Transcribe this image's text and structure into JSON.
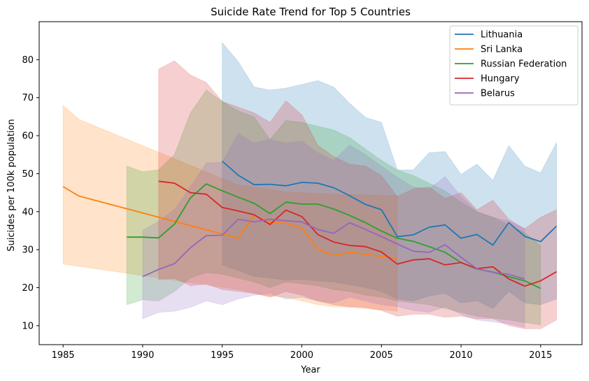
{
  "chart_data": {
    "type": "line",
    "title": "Suicide Rate Trend for Top 5 Countries",
    "xlabel": "Year",
    "ylabel": "Suicides per 100k population",
    "xlim": [
      1983.5,
      2017.6
    ],
    "ylim": [
      5,
      90
    ],
    "xticks": [
      1985,
      1990,
      1995,
      2000,
      2005,
      2010,
      2015
    ],
    "yticks": [
      10,
      20,
      30,
      40,
      50,
      60,
      70,
      80
    ],
    "legend_position": "top-right",
    "grid": false,
    "series": [
      {
        "name": "Lithuania",
        "color": "#1f77b4",
        "x": [
          1995,
          1996,
          1997,
          1998,
          1999,
          2000,
          2001,
          2002,
          2003,
          2004,
          2005,
          2006,
          2007,
          2008,
          2009,
          2010,
          2011,
          2012,
          2013,
          2014,
          2015,
          2016
        ],
        "y": [
          53.3,
          49.6,
          47.1,
          47.2,
          46.8,
          47.7,
          47.5,
          46.3,
          44.2,
          41.9,
          40.5,
          33.4,
          33.9,
          35.9,
          36.5,
          33.0,
          34.0,
          31.2,
          37.1,
          33.5,
          32.1,
          36.2
        ],
        "ci_low": [
          26.0,
          24.5,
          23.0,
          22.5,
          22.0,
          22.2,
          21.8,
          21.5,
          20.8,
          20.0,
          19.0,
          17.0,
          16.5,
          17.8,
          18.5,
          16.0,
          16.5,
          14.5,
          19.0,
          16.0,
          15.5,
          17.0
        ],
        "ci_high": [
          84.5,
          79.5,
          72.8,
          72.0,
          72.5,
          73.5,
          74.5,
          72.8,
          68.5,
          64.8,
          63.5,
          51.0,
          51.0,
          55.5,
          55.8,
          49.8,
          52.5,
          48.2,
          57.4,
          52.0,
          50.2,
          58.2
        ]
      },
      {
        "name": "Sri Lanka",
        "color": "#ff7f0e",
        "x": [
          1985,
          1986,
          1996,
          1997,
          1998,
          1999,
          2000,
          2001,
          2002,
          2003,
          2004,
          2005,
          2006
        ],
        "y": [
          46.6,
          44.1,
          33.0,
          39.0,
          37.2,
          37.0,
          35.7,
          30.2,
          28.4,
          29.3,
          28.8,
          28.2,
          27.7
        ],
        "ci_low": [
          26.2,
          25.6,
          19.5,
          18.5,
          17.8,
          17.5,
          16.5,
          15.5,
          15.0,
          14.8,
          14.5,
          14.2,
          13.8
        ],
        "ci_high": [
          68.0,
          64.3,
          47.0,
          46.5,
          45.8,
          45.2,
          45.0,
          44.8,
          44.6,
          44.5,
          44.4,
          44.3,
          44.2
        ]
      },
      {
        "name": "Russian Federation",
        "color": "#2ca02c",
        "x": [
          1989,
          1990,
          1991,
          1992,
          1993,
          1994,
          1995,
          1996,
          1997,
          1998,
          1999,
          2000,
          2001,
          2002,
          2003,
          2004,
          2005,
          2006,
          2007,
          2008,
          2009,
          2010,
          2011,
          2012,
          2013,
          2014,
          2015
        ],
        "y": [
          33.3,
          33.3,
          33.1,
          36.7,
          43.6,
          47.3,
          45.5,
          43.8,
          42.2,
          39.5,
          42.5,
          42.0,
          42.0,
          40.7,
          39.0,
          37.1,
          34.9,
          33.0,
          32.2,
          30.8,
          29.3,
          26.6,
          24.9,
          24.1,
          22.9,
          21.8,
          19.8
        ],
        "ci_low": [
          15.5,
          16.8,
          16.5,
          19.0,
          22.5,
          24.0,
          23.5,
          22.5,
          21.5,
          20.0,
          21.5,
          21.0,
          20.5,
          19.5,
          19.0,
          18.0,
          17.5,
          16.5,
          16.0,
          15.5,
          14.5,
          13.5,
          12.5,
          12.0,
          11.5,
          10.8,
          10.2
        ],
        "ci_high": [
          52.0,
          50.5,
          51.0,
          55.0,
          66.0,
          72.0,
          69.0,
          66.5,
          65.0,
          59.0,
          64.0,
          63.5,
          62.5,
          61.5,
          59.5,
          56.5,
          53.5,
          51.0,
          49.5,
          47.5,
          45.5,
          42.5,
          40.0,
          38.5,
          36.5,
          34.5,
          31.0
        ]
      },
      {
        "name": "Hungary",
        "color": "#d62728",
        "x": [
          1991,
          1992,
          1993,
          1994,
          1995,
          1996,
          1997,
          1998,
          1999,
          2000,
          2001,
          2002,
          2003,
          2004,
          2005,
          2006,
          2007,
          2008,
          2009,
          2010,
          2011,
          2012,
          2013,
          2014,
          2015,
          2016
        ],
        "y": [
          48.0,
          47.5,
          45.0,
          44.6,
          41.1,
          40.2,
          39.2,
          36.6,
          40.4,
          38.7,
          34.0,
          32.0,
          31.1,
          30.8,
          29.4,
          26.2,
          27.3,
          27.6,
          26.0,
          26.6,
          25.0,
          25.5,
          22.3,
          20.4,
          21.8,
          24.2
        ],
        "ci_low": [
          22.0,
          22.5,
          20.5,
          21.0,
          19.5,
          19.0,
          18.5,
          17.5,
          19.0,
          18.0,
          16.5,
          15.5,
          15.0,
          14.8,
          14.0,
          12.5,
          13.0,
          13.0,
          12.2,
          12.5,
          11.8,
          11.8,
          10.0,
          9.2,
          9.2,
          11.5
        ],
        "ci_high": [
          77.5,
          79.7,
          76.0,
          74.0,
          69.0,
          67.5,
          66.0,
          63.5,
          69.2,
          65.5,
          57.5,
          54.5,
          52.5,
          52.0,
          49.5,
          44.0,
          46.0,
          46.5,
          43.5,
          45.0,
          40.5,
          43.0,
          38.0,
          35.5,
          38.5,
          40.5
        ]
      },
      {
        "name": "Belarus",
        "color": "#9467bd",
        "x": [
          1990,
          1991,
          1992,
          1993,
          1994,
          1995,
          1996,
          1997,
          1998,
          1999,
          2000,
          2001,
          2002,
          2003,
          2004,
          2005,
          2006,
          2007,
          2008,
          2009,
          2010,
          2011,
          2012,
          2013,
          2014
        ],
        "y": [
          22.9,
          24.8,
          26.3,
          30.5,
          33.7,
          33.8,
          38.0,
          37.3,
          38.0,
          37.6,
          37.3,
          35.3,
          34.3,
          37.1,
          35.3,
          33.4,
          31.5,
          29.6,
          29.3,
          31.3,
          28.0,
          25.0,
          24.0,
          23.5,
          22.3
        ],
        "ci_low": [
          11.8,
          13.5,
          13.8,
          14.8,
          16.5,
          15.5,
          17.0,
          18.0,
          18.5,
          17.0,
          17.5,
          16.5,
          16.0,
          17.5,
          16.5,
          15.5,
          15.0,
          14.0,
          13.5,
          15.0,
          13.0,
          11.5,
          11.0,
          10.5,
          9.5
        ],
        "ci_high": [
          35.0,
          37.5,
          40.5,
          46.5,
          52.8,
          53.0,
          60.5,
          58.0,
          59.0,
          58.0,
          58.5,
          55.5,
          53.5,
          57.5,
          55.0,
          52.0,
          49.0,
          46.5,
          46.0,
          49.2,
          44.0,
          40.0,
          38.5,
          37.5,
          35.5
        ]
      }
    ]
  }
}
